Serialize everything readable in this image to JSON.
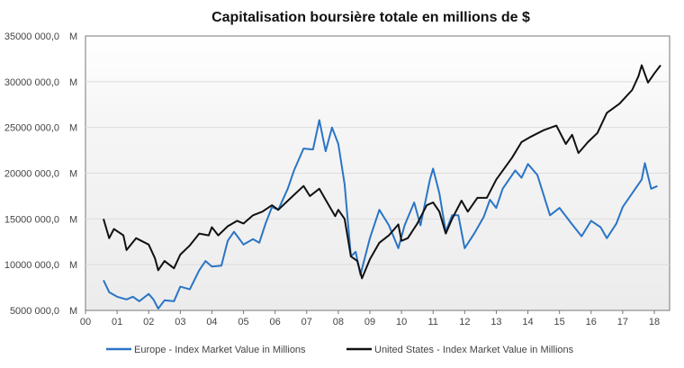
{
  "chart_data": {
    "type": "line",
    "title": "Capitalisation boursière totale en millions de $",
    "xlabel": "",
    "ylabel": "",
    "xlim": [
      0,
      18.5
    ],
    "ylim": [
      5000000,
      35000000
    ],
    "grid": true,
    "legend_placement": "bottom",
    "x_ticks": [
      "00",
      "01",
      "02",
      "03",
      "04",
      "05",
      "06",
      "07",
      "08",
      "09",
      "10",
      "11",
      "12",
      "13",
      "14",
      "15",
      "16",
      "17",
      "18"
    ],
    "y_ticks": [
      {
        "value": 5000000,
        "label": "5000 000,0   M"
      },
      {
        "value": 10000000,
        "label": "10000 000,0   M"
      },
      {
        "value": 15000000,
        "label": "15000 000,0   M"
      },
      {
        "value": 20000000,
        "label": "20000 000,0   M"
      },
      {
        "value": 25000000,
        "label": "25000 000,0   M"
      },
      {
        "value": 30000000,
        "label": "30000 000,0   M"
      },
      {
        "value": 35000000,
        "label": "35000 000,0   M"
      }
    ],
    "series": [
      {
        "name": "Europe - Index Market Value in Millions",
        "color": "#2a75c6",
        "points": [
          [
            0.57,
            8300000
          ],
          [
            0.75,
            7000000
          ],
          [
            1.0,
            6500000
          ],
          [
            1.3,
            6200000
          ],
          [
            1.5,
            6500000
          ],
          [
            1.7,
            6000000
          ],
          [
            2.0,
            6800000
          ],
          [
            2.15,
            6200000
          ],
          [
            2.3,
            5200000
          ],
          [
            2.5,
            6100000
          ],
          [
            2.8,
            6000000
          ],
          [
            3.0,
            7600000
          ],
          [
            3.3,
            7300000
          ],
          [
            3.6,
            9400000
          ],
          [
            3.8,
            10400000
          ],
          [
            4.0,
            9800000
          ],
          [
            4.3,
            9900000
          ],
          [
            4.5,
            12600000
          ],
          [
            4.7,
            13600000
          ],
          [
            5.0,
            12200000
          ],
          [
            5.3,
            12800000
          ],
          [
            5.5,
            12400000
          ],
          [
            5.7,
            14500000
          ],
          [
            5.9,
            16300000
          ],
          [
            6.1,
            16000000
          ],
          [
            6.4,
            18300000
          ],
          [
            6.6,
            20300000
          ],
          [
            6.9,
            22700000
          ],
          [
            7.2,
            22600000
          ],
          [
            7.4,
            25800000
          ],
          [
            7.6,
            22400000
          ],
          [
            7.8,
            25000000
          ],
          [
            8.0,
            23200000
          ],
          [
            8.2,
            18800000
          ],
          [
            8.4,
            10900000
          ],
          [
            8.55,
            11400000
          ],
          [
            8.7,
            8900000
          ],
          [
            9.0,
            12900000
          ],
          [
            9.3,
            16000000
          ],
          [
            9.6,
            14300000
          ],
          [
            9.9,
            11800000
          ],
          [
            10.1,
            14300000
          ],
          [
            10.4,
            16800000
          ],
          [
            10.6,
            14300000
          ],
          [
            10.9,
            19300000
          ],
          [
            11.0,
            20500000
          ],
          [
            11.2,
            17800000
          ],
          [
            11.4,
            13600000
          ],
          [
            11.6,
            15400000
          ],
          [
            11.8,
            15400000
          ],
          [
            12.0,
            11800000
          ],
          [
            12.3,
            13400000
          ],
          [
            12.6,
            15200000
          ],
          [
            12.8,
            17100000
          ],
          [
            13.0,
            16200000
          ],
          [
            13.2,
            18300000
          ],
          [
            13.6,
            20300000
          ],
          [
            13.8,
            19500000
          ],
          [
            14.0,
            21000000
          ],
          [
            14.3,
            19800000
          ],
          [
            14.7,
            15400000
          ],
          [
            15.0,
            16200000
          ],
          [
            15.4,
            14400000
          ],
          [
            15.7,
            13100000
          ],
          [
            16.0,
            14800000
          ],
          [
            16.3,
            14100000
          ],
          [
            16.5,
            12900000
          ],
          [
            16.8,
            14500000
          ],
          [
            17.0,
            16300000
          ],
          [
            17.4,
            18300000
          ],
          [
            17.6,
            19300000
          ],
          [
            17.7,
            21100000
          ],
          [
            17.9,
            18300000
          ],
          [
            18.1,
            18600000
          ]
        ]
      },
      {
        "name": "United States - Index Market Value in Millions",
        "color": "#111111",
        "points": [
          [
            0.57,
            15000000
          ],
          [
            0.75,
            12900000
          ],
          [
            0.9,
            13900000
          ],
          [
            1.2,
            13200000
          ],
          [
            1.3,
            11600000
          ],
          [
            1.6,
            12900000
          ],
          [
            2.0,
            12200000
          ],
          [
            2.2,
            10700000
          ],
          [
            2.3,
            9400000
          ],
          [
            2.5,
            10400000
          ],
          [
            2.8,
            9600000
          ],
          [
            3.0,
            11100000
          ],
          [
            3.3,
            12100000
          ],
          [
            3.6,
            13400000
          ],
          [
            3.9,
            13200000
          ],
          [
            4.0,
            14100000
          ],
          [
            4.2,
            13200000
          ],
          [
            4.5,
            14200000
          ],
          [
            4.8,
            14800000
          ],
          [
            5.0,
            14500000
          ],
          [
            5.3,
            15400000
          ],
          [
            5.6,
            15800000
          ],
          [
            5.9,
            16500000
          ],
          [
            6.1,
            16000000
          ],
          [
            6.5,
            17300000
          ],
          [
            6.9,
            18600000
          ],
          [
            7.1,
            17500000
          ],
          [
            7.4,
            18300000
          ],
          [
            7.6,
            17100000
          ],
          [
            7.9,
            15300000
          ],
          [
            8.0,
            16000000
          ],
          [
            8.2,
            15000000
          ],
          [
            8.4,
            10900000
          ],
          [
            8.6,
            10400000
          ],
          [
            8.75,
            8500000
          ],
          [
            9.0,
            10600000
          ],
          [
            9.3,
            12400000
          ],
          [
            9.6,
            13200000
          ],
          [
            9.9,
            14400000
          ],
          [
            10.0,
            12600000
          ],
          [
            10.2,
            12900000
          ],
          [
            10.5,
            14500000
          ],
          [
            10.8,
            16500000
          ],
          [
            11.0,
            16800000
          ],
          [
            11.2,
            15800000
          ],
          [
            11.4,
            13400000
          ],
          [
            11.6,
            15000000
          ],
          [
            11.9,
            17000000
          ],
          [
            12.1,
            15800000
          ],
          [
            12.4,
            17300000
          ],
          [
            12.7,
            17300000
          ],
          [
            13.0,
            19300000
          ],
          [
            13.5,
            21700000
          ],
          [
            13.8,
            23400000
          ],
          [
            14.1,
            24000000
          ],
          [
            14.5,
            24700000
          ],
          [
            14.9,
            25200000
          ],
          [
            15.2,
            23200000
          ],
          [
            15.4,
            24200000
          ],
          [
            15.6,
            22200000
          ],
          [
            15.9,
            23400000
          ],
          [
            16.2,
            24400000
          ],
          [
            16.5,
            26600000
          ],
          [
            16.9,
            27600000
          ],
          [
            17.3,
            29100000
          ],
          [
            17.5,
            30600000
          ],
          [
            17.6,
            31800000
          ],
          [
            17.8,
            29900000
          ],
          [
            18.0,
            30900000
          ],
          [
            18.2,
            31800000
          ]
        ]
      }
    ]
  }
}
